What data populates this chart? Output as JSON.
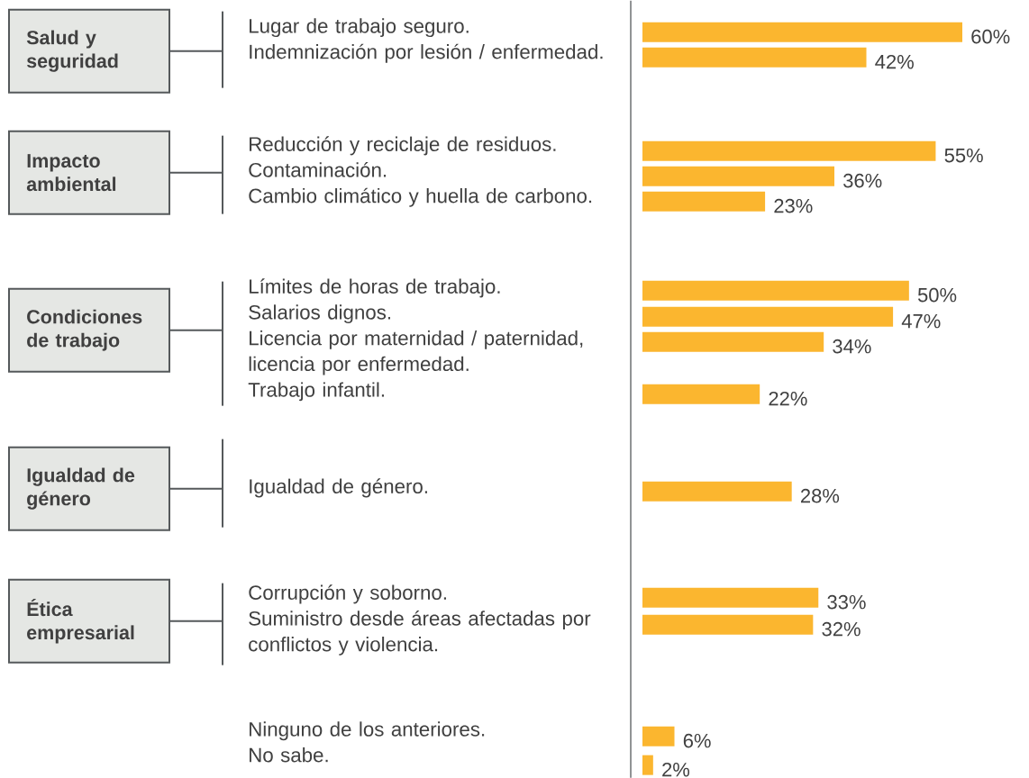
{
  "chart_data": {
    "type": "bar",
    "orientation": "horizontal",
    "categories": [
      "Lugar de trabajo seguro.",
      "Indemnización por lesión / enfermedad.",
      "Reducción y reciclaje de residuos.",
      "Contaminación.",
      "Cambio climático y huella de carbono.",
      "Límites de horas de trabajo.",
      "Salarios dignos.",
      "Licencia por maternidad / paternidad, licencia por enfermedad.",
      "Trabajo infantil.",
      "Igualdad de género.",
      "Corrupción y soborno.",
      "Suministro desde áreas afectadas por conflictos y violencia.",
      "Ninguno de los anteriores.",
      "No sabe."
    ],
    "values": [
      60,
      42,
      55,
      36,
      23,
      50,
      47,
      34,
      22,
      28,
      33,
      32,
      6,
      2
    ],
    "value_labels": [
      "60%",
      "42%",
      "55%",
      "36%",
      "23%",
      "50%",
      "47%",
      "34%",
      "22%",
      "28%",
      "33%",
      "32%",
      "6%",
      "2%"
    ],
    "color": "#fbb62f",
    "annotations": [
      "Salud y seguridad",
      "Impacto ambiental",
      "Condiciones de trabajo",
      "Igualdad de género",
      "Ética empresarial"
    ]
  }
}
